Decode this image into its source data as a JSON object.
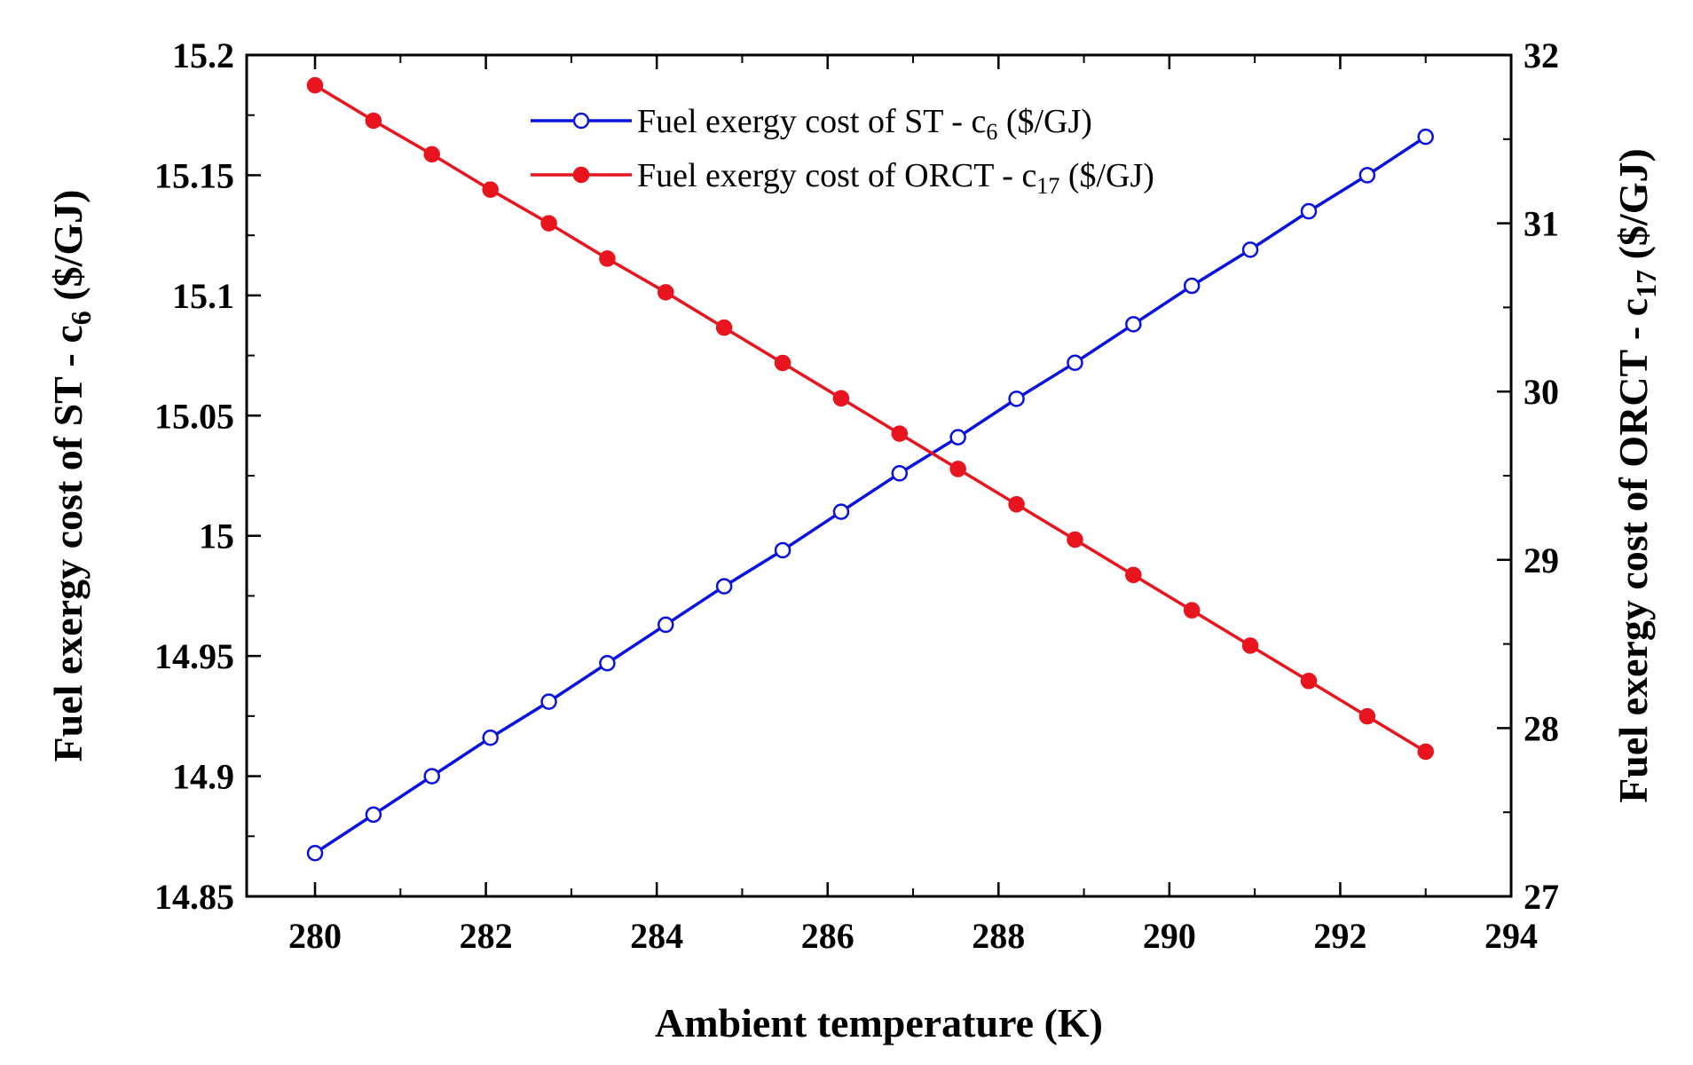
{
  "chart_data": {
    "type": "line",
    "xlabel": "Ambient temperature (K)",
    "ylabel_left": {
      "text": "Fuel exergy cost of ST - c",
      "sub": "6",
      "unit": " ($/GJ)"
    },
    "ylabel_right": {
      "text": "Fuel exergy cost of ORCT - c",
      "sub": "17",
      "unit": " ($/GJ)"
    },
    "xlim": [
      279.2,
      294
    ],
    "ylim_left": [
      14.85,
      15.2
    ],
    "ylim_right": [
      27,
      32
    ],
    "x_ticks": [
      "280",
      "282",
      "284",
      "286",
      "288",
      "290",
      "292",
      "294"
    ],
    "y_left_ticks": [
      "14.85",
      "14.9",
      "14.95",
      "15",
      "15.05",
      "15.1",
      "15.15",
      "15.2"
    ],
    "y_right_ticks": [
      "27",
      "28",
      "29",
      "30",
      "31",
      "32"
    ],
    "x": [
      280,
      280.684,
      281.368,
      282.053,
      282.737,
      283.421,
      284.105,
      284.789,
      285.474,
      286.158,
      286.842,
      287.526,
      288.211,
      288.895,
      289.579,
      290.263,
      290.947,
      291.632,
      292.316,
      293
    ],
    "series": [
      {
        "name": "Fuel exergy cost of ST - c",
        "name_sub": "6",
        "name_unit": " ($/GJ)",
        "axis": "left",
        "color": "#0a12e0",
        "marker": "open-circle",
        "values": [
          14.868,
          14.884,
          14.9,
          14.916,
          14.931,
          14.947,
          14.963,
          14.979,
          14.994,
          15.01,
          15.026,
          15.041,
          15.057,
          15.072,
          15.088,
          15.104,
          15.119,
          15.135,
          15.15,
          15.166
        ]
      },
      {
        "name": "Fuel exergy cost of ORCT - c",
        "name_sub": "17",
        "name_unit": " ($/GJ)",
        "axis": "right",
        "color": "#e8141e",
        "marker": "filled-circle",
        "values": [
          31.82,
          31.61,
          31.41,
          31.2,
          31.0,
          30.79,
          30.59,
          30.38,
          30.17,
          29.96,
          29.75,
          29.54,
          29.33,
          29.12,
          28.91,
          28.7,
          28.49,
          28.28,
          28.07,
          27.86
        ]
      }
    ],
    "legend": "top-center"
  }
}
